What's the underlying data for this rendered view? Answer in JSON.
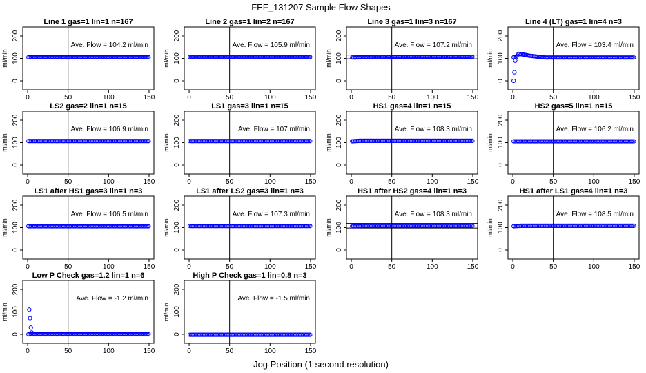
{
  "figure": {
    "title": "FEF_131207  Sample Flow Shapes",
    "xlabel": "Jog Position (1 second resolution)"
  },
  "colors": {
    "points": "#0000ff",
    "lines": "#000000"
  },
  "chart_data": [
    {
      "type": "scatter",
      "title": "Line 1 gas=1 lin=1 n=167",
      "ylabel": "ml/min",
      "annotation": "Ave. Flow = 104.2  ml/min",
      "xlim": [
        0,
        150
      ],
      "ylim": [
        0,
        200
      ],
      "xticks": [
        0,
        50,
        100,
        150
      ],
      "yticks": [
        0,
        100,
        200
      ],
      "vline": 50,
      "hlines": [],
      "grid": false,
      "profile": [
        [
          1,
          105
        ],
        [
          150,
          105
        ]
      ]
    },
    {
      "type": "scatter",
      "title": "Line 2 gas=1 lin=2 n=167",
      "ylabel": "ml/min",
      "annotation": "Ave. Flow = 105.9  ml/min",
      "xlim": [
        0,
        150
      ],
      "ylim": [
        0,
        200
      ],
      "xticks": [
        0,
        50,
        100,
        150
      ],
      "yticks": [
        0,
        100,
        200
      ],
      "vline": 50,
      "hlines": [],
      "grid": false,
      "profile": [
        [
          1,
          106
        ],
        [
          150,
          106
        ]
      ]
    },
    {
      "type": "scatter",
      "title": "Line 3 gas=1 lin=3 n=167",
      "ylabel": "ml/min",
      "annotation": "Ave. Flow = 107.2  ml/min",
      "xlim": [
        0,
        150
      ],
      "ylim": [
        0,
        200
      ],
      "xticks": [
        0,
        50,
        100,
        150
      ],
      "yticks": [
        0,
        100,
        200
      ],
      "vline": 50,
      "hlines": [
        98,
        115
      ],
      "grid": false,
      "profile": [
        [
          1,
          104
        ],
        [
          50,
          107
        ],
        [
          150,
          107
        ]
      ]
    },
    {
      "type": "scatter",
      "title": "Line 4 (LT) gas=1 lin=4 n=3",
      "ylabel": "ml/min",
      "annotation": "Ave. Flow = 103.4  ml/min",
      "xlim": [
        0,
        150
      ],
      "ylim": [
        0,
        200
      ],
      "xticks": [
        0,
        50,
        100,
        150
      ],
      "yticks": [
        0,
        100,
        200
      ],
      "vline": 50,
      "hlines": [],
      "grid": false,
      "profile": [
        [
          4,
          105
        ],
        [
          7,
          120
        ],
        [
          12,
          118
        ],
        [
          20,
          112
        ],
        [
          40,
          104
        ],
        [
          150,
          104
        ]
      ],
      "outliers": [
        [
          1,
          0
        ],
        [
          2,
          38
        ],
        [
          3,
          90
        ]
      ]
    },
    {
      "type": "scatter",
      "title": "LS2 gas=2 lin=1 n=15",
      "ylabel": "ml/min",
      "annotation": "Ave. Flow = 106.9  ml/min",
      "xlim": [
        0,
        150
      ],
      "ylim": [
        0,
        200
      ],
      "xticks": [
        0,
        50,
        100,
        150
      ],
      "yticks": [
        0,
        100,
        200
      ],
      "vline": 50,
      "hlines": [],
      "grid": false,
      "profile": [
        [
          1,
          107
        ],
        [
          150,
          107
        ]
      ]
    },
    {
      "type": "scatter",
      "title": "LS1 gas=3 lin=1 n=15",
      "ylabel": "ml/min",
      "annotation": "Ave. Flow = 107  ml/min",
      "xlim": [
        0,
        150
      ],
      "ylim": [
        0,
        200
      ],
      "xticks": [
        0,
        50,
        100,
        150
      ],
      "yticks": [
        0,
        100,
        200
      ],
      "vline": 50,
      "hlines": [],
      "grid": false,
      "profile": [
        [
          1,
          107
        ],
        [
          150,
          107
        ]
      ]
    },
    {
      "type": "scatter",
      "title": "HS1 gas=4 lin=1 n=15",
      "ylabel": "ml/min",
      "annotation": "Ave. Flow = 108.3  ml/min",
      "xlim": [
        0,
        150
      ],
      "ylim": [
        0,
        200
      ],
      "xticks": [
        0,
        50,
        100,
        150
      ],
      "yticks": [
        0,
        100,
        200
      ],
      "vline": 50,
      "hlines": [],
      "grid": false,
      "profile": [
        [
          1,
          106
        ],
        [
          10,
          108
        ],
        [
          150,
          108
        ]
      ]
    },
    {
      "type": "scatter",
      "title": "HS2 gas=5 lin=1 n=15",
      "ylabel": "ml/min",
      "annotation": "Ave. Flow = 106.2  ml/min",
      "xlim": [
        0,
        150
      ],
      "ylim": [
        0,
        200
      ],
      "xticks": [
        0,
        50,
        100,
        150
      ],
      "yticks": [
        0,
        100,
        200
      ],
      "vline": 50,
      "hlines": [],
      "grid": false,
      "profile": [
        [
          1,
          106
        ],
        [
          150,
          106
        ]
      ]
    },
    {
      "type": "scatter",
      "title": "LS1 after HS1 gas=3 lin=1 n=3",
      "ylabel": "ml/min",
      "annotation": "Ave. Flow = 106.5  ml/min",
      "xlim": [
        0,
        150
      ],
      "ylim": [
        0,
        200
      ],
      "xticks": [
        0,
        50,
        100,
        150
      ],
      "yticks": [
        0,
        100,
        200
      ],
      "vline": 50,
      "hlines": [],
      "grid": false,
      "profile": [
        [
          1,
          106
        ],
        [
          150,
          106
        ]
      ]
    },
    {
      "type": "scatter",
      "title": "LS1 after LS2 gas=3 lin=1 n=3",
      "ylabel": "ml/min",
      "annotation": "Ave. Flow = 107.3  ml/min",
      "xlim": [
        0,
        150
      ],
      "ylim": [
        0,
        200
      ],
      "xticks": [
        0,
        50,
        100,
        150
      ],
      "yticks": [
        0,
        100,
        200
      ],
      "vline": 50,
      "hlines": [],
      "grid": false,
      "profile": [
        [
          1,
          107
        ],
        [
          150,
          107
        ]
      ]
    },
    {
      "type": "scatter",
      "title": "HS1 after HS2 gas=4 lin=1 n=3",
      "ylabel": "ml/min",
      "annotation": "Ave. Flow = 108.3  ml/min",
      "xlim": [
        0,
        150
      ],
      "ylim": [
        0,
        200
      ],
      "xticks": [
        0,
        50,
        100,
        150
      ],
      "yticks": [
        0,
        100,
        200
      ],
      "vline": 50,
      "hlines": [
        98,
        118
      ],
      "grid": false,
      "profile": [
        [
          1,
          106
        ],
        [
          20,
          108
        ],
        [
          150,
          108
        ]
      ]
    },
    {
      "type": "scatter",
      "title": "HS1 after LS1 gas=4 lin=1 n=3",
      "ylabel": "ml/min",
      "annotation": "Ave. Flow = 108.5  ml/min",
      "xlim": [
        0,
        150
      ],
      "ylim": [
        0,
        200
      ],
      "xticks": [
        0,
        50,
        100,
        150
      ],
      "yticks": [
        0,
        100,
        200
      ],
      "vline": 50,
      "hlines": [],
      "grid": false,
      "profile": [
        [
          1,
          106
        ],
        [
          10,
          108
        ],
        [
          150,
          108
        ]
      ]
    },
    {
      "type": "scatter",
      "title": "Low P Check gas=1.2 lin=1 n=6",
      "ylabel": "ml/min",
      "annotation": "Ave. Flow = -1.2  ml/min",
      "xlim": [
        0,
        150
      ],
      "ylim": [
        0,
        200
      ],
      "xticks": [
        0,
        50,
        100,
        150
      ],
      "yticks": [
        0,
        100,
        200
      ],
      "vline": 50,
      "hlines": [],
      "grid": false,
      "profile": [
        [
          5,
          0
        ],
        [
          150,
          0
        ]
      ],
      "outliers": [
        [
          2,
          110
        ],
        [
          3,
          72
        ],
        [
          4,
          30
        ],
        [
          5,
          8
        ]
      ]
    },
    {
      "type": "scatter",
      "title": "High P Check gas=1 lin=0.8 n=3",
      "ylabel": "ml/min",
      "annotation": "Ave. Flow = -1.5  ml/min",
      "xlim": [
        0,
        150
      ],
      "ylim": [
        0,
        200
      ],
      "xticks": [
        0,
        50,
        100,
        150
      ],
      "yticks": [
        0,
        100,
        200
      ],
      "vline": 50,
      "hlines": [],
      "grid": false,
      "profile": [
        [
          1,
          -2
        ],
        [
          150,
          -2
        ]
      ]
    }
  ]
}
